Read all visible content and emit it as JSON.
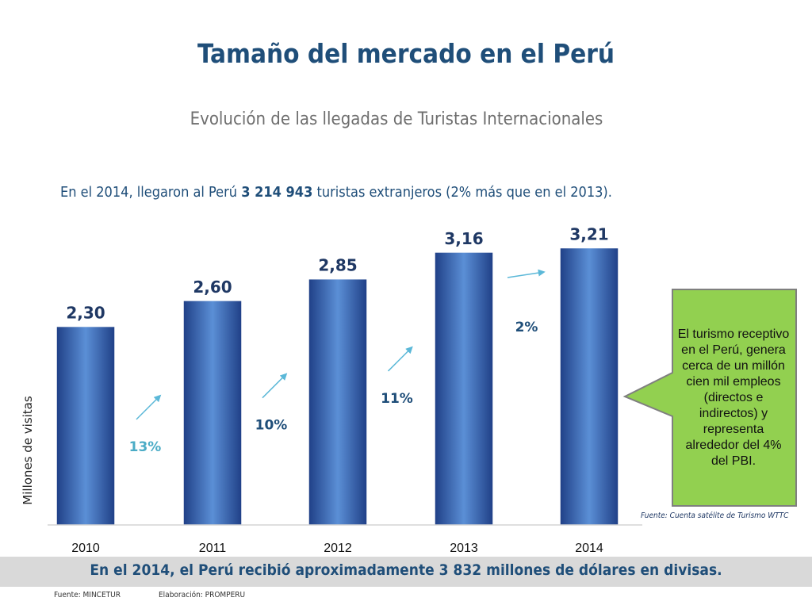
{
  "header": {
    "title": "Tamaño del mercado en el Perú",
    "subtitle": "Evolución de las llegadas de Turistas Internacionales"
  },
  "intro": {
    "prefix": "En el 2014, llegaron al Perú ",
    "highlight": "3 214 943",
    "suffix": " turistas extranjeros  (2% más que en el 2013)."
  },
  "chart_data": {
    "type": "bar",
    "categories": [
      "2010",
      "2011",
      "2012",
      "2013",
      "2014"
    ],
    "values": [
      2.3,
      2.6,
      2.85,
      3.16,
      3.21
    ],
    "value_labels": [
      "2,30",
      "2,60",
      "2,85",
      "3,16",
      "3,21"
    ],
    "growth_labels": [
      "13%",
      "10%",
      "11%",
      "2%"
    ],
    "ylabel": "Millones de visitas",
    "ylim": [
      0,
      3.5
    ],
    "grid": false,
    "colors": {
      "bar_dark": "#1f3f86",
      "bar_light": "#5b8fd6",
      "value_label": "#1f3864",
      "growth_label_light": "#4bacc6",
      "growth_label_dark": "#1f4e79",
      "arrow": "#5bb8d8"
    }
  },
  "callout": {
    "text": "El turismo receptivo en el Perú, genera cerca de un millón cien mil empleos (directos e indirectos) y representa alrededor del 4% del PBI.",
    "source": "Fuente: Cuenta satélite de Turismo WTTC",
    "fill": "#92d050",
    "border": "#7f7f7f"
  },
  "footer": {
    "summary": "En el 2014, el Perú recibió aproximadamente 3 832 millones de dólares en divisas.",
    "source": "Fuente: MINCETUR",
    "credit": "Elaboración: PROMPERU"
  }
}
